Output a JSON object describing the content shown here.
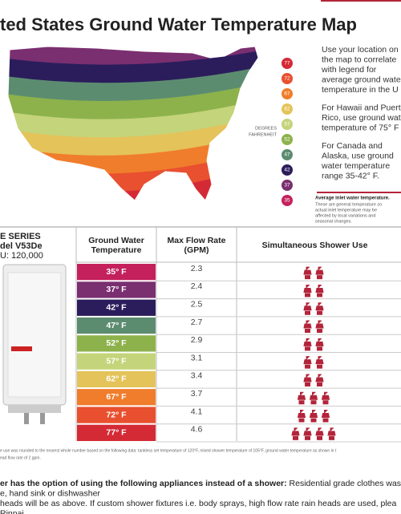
{
  "title": "ted States Ground Water Temperature Map",
  "legend": {
    "values": [
      77,
      72,
      67,
      62,
      57,
      52,
      47,
      42,
      37,
      35
    ],
    "colors": [
      "#d42a35",
      "#e8502f",
      "#f07d2c",
      "#e4c35a",
      "#c4d47a",
      "#8db24c",
      "#5c8c70",
      "#2b1d5c",
      "#7a2f70",
      "#c4215c"
    ],
    "unit_label": [
      "DEGREES",
      "FAHRENHEIT"
    ]
  },
  "notes": [
    [
      "Use your location on",
      "the map to correlate",
      "with legend for",
      "average ground wate",
      "temperature in the U"
    ],
    [
      "For Hawaii and Puert",
      "Rico, use ground wat",
      "temperature of 75° F"
    ],
    [
      "For Canada and",
      "Alaska, use ground",
      "water temperature",
      "range 35-42° F."
    ]
  ],
  "note_heading": "Average inlet water temperature.",
  "note_body": [
    "These are general temperature zo",
    "actual inlet temperature may be",
    "affected by local variations and",
    "seasonal changes."
  ],
  "model": [
    "E SERIES",
    "del V53De",
    "U: 120,000"
  ],
  "table": {
    "headers": [
      [
        "Ground Water",
        "Temperature"
      ],
      [
        "Max Flow Rate",
        "(GPM)"
      ],
      [
        "Simultaneous Shower Use"
      ]
    ],
    "rows": [
      {
        "temperature": "35° F",
        "flow": 2.3,
        "showers": 2,
        "color": "#c4215c"
      },
      {
        "temperature": "37° F",
        "flow": 2.4,
        "showers": 2,
        "color": "#7a2f70"
      },
      {
        "temperature": "42° F",
        "flow": 2.5,
        "showers": 2,
        "color": "#2b1d5c"
      },
      {
        "temperature": "47° F",
        "flow": 2.7,
        "showers": 2,
        "color": "#5c8c70"
      },
      {
        "temperature": "52° F",
        "flow": 2.9,
        "showers": 2,
        "color": "#8db24c"
      },
      {
        "temperature": "57° F",
        "flow": 3.1,
        "showers": 2,
        "color": "#c4d47a"
      },
      {
        "temperature": "62° F",
        "flow": 3.4,
        "showers": 2,
        "color": "#e4c35a"
      },
      {
        "temperature": "67° F",
        "flow": 3.7,
        "showers": 3,
        "color": "#f07d2c"
      },
      {
        "temperature": "72° F",
        "flow": 4.1,
        "showers": 3,
        "color": "#e8502f"
      },
      {
        "temperature": "77° F",
        "flow": 4.6,
        "showers": 4,
        "color": "#d42a35"
      }
    ]
  },
  "footnote": [
    "e use was rounded to the nearest whole number based on the following data: tankless set temperature of 120°F, mixed shower temperature of 105°F, ground water temperature as shown in t",
    "ead flow rate of 2 gpm."
  ],
  "bottom": [
    {
      "bold": "er has the option of using the following appliances instead of a shower:",
      "text": " Residential grade clothes washi"
    },
    {
      "text": "e, hand sink or dishwasher"
    },
    {
      "text": "heads will be as above. If custom shower fixtures  i.e. body sprays, high flow rate rain heads are used, plea"
    },
    {
      "text": "Rinnai."
    }
  ]
}
